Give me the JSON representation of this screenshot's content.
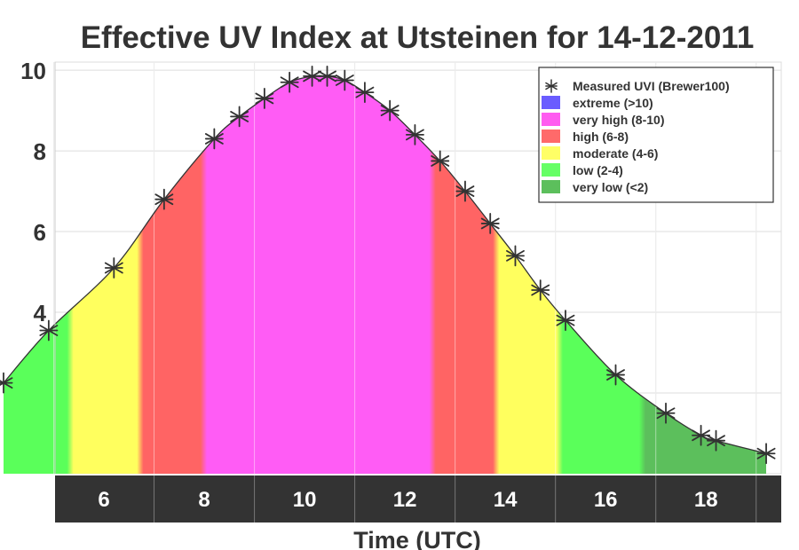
{
  "chart_data": {
    "type": "area",
    "title": "Effective UV Index at Utsteinen for 14-12-2011",
    "xlabel": "Time (UTC)",
    "ylabel": "",
    "xlim": [
      4.0,
      19.5
    ],
    "ylim": [
      0,
      10.2
    ],
    "x_ticks": [
      {
        "label": "6",
        "value": 6
      },
      {
        "label": "8",
        "value": 8
      },
      {
        "label": "10",
        "value": 10
      },
      {
        "label": "12",
        "value": 12
      },
      {
        "label": "14",
        "value": 14
      },
      {
        "label": "16",
        "value": 16
      },
      {
        "label": "18",
        "value": 18
      }
    ],
    "y_ticks": [
      {
        "label": "4",
        "value": 4
      },
      {
        "label": "6",
        "value": 6
      },
      {
        "label": "8",
        "value": 8
      },
      {
        "label": "10",
        "value": 10
      }
    ],
    "grid": true,
    "legend_position": "top-right",
    "legend": [
      {
        "label": "Measured UVI (Brewer100)",
        "marker": "asterisk",
        "color": "#333333"
      },
      {
        "label": "extreme (>10)",
        "color": "#6a5cff"
      },
      {
        "label": "very high (8-10)",
        "color": "#ff5cf0"
      },
      {
        "label": "high (6-8)",
        "color": "#ff6a6a"
      },
      {
        "label": "moderate (4-6)",
        "color": "#ffff66"
      },
      {
        "label": "low (2-4)",
        "color": "#66ff66"
      },
      {
        "label": "very low (<2)",
        "color": "#5cbf5c"
      }
    ],
    "uv_bands": [
      {
        "name": "very low",
        "min": 0,
        "max": 2,
        "color": "#5cbf5c"
      },
      {
        "name": "low",
        "min": 2,
        "max": 4,
        "color": "#5aff5a"
      },
      {
        "name": "moderate",
        "min": 4,
        "max": 6,
        "color": "#ffff5e"
      },
      {
        "name": "high",
        "min": 6,
        "max": 8,
        "color": "#ff6464"
      },
      {
        "name": "very high",
        "min": 8,
        "max": 10,
        "color": "#ff5cf5"
      },
      {
        "name": "extreme",
        "min": 10,
        "max": 12,
        "color": "#b061ff"
      }
    ],
    "series": [
      {
        "name": "Measured UVI (Brewer100)",
        "marker": "asterisk",
        "x": [
          4.0,
          4.9,
          6.2,
          7.2,
          8.2,
          8.7,
          9.2,
          9.7,
          10.15,
          10.45,
          10.8,
          11.2,
          11.7,
          12.2,
          12.7,
          13.2,
          13.7,
          14.2,
          14.7,
          15.2,
          16.2,
          17.2,
          17.9,
          18.2,
          19.2
        ],
        "y": [
          2.25,
          3.55,
          5.1,
          6.8,
          8.3,
          8.85,
          9.3,
          9.7,
          9.85,
          9.85,
          9.75,
          9.45,
          9.0,
          8.4,
          7.75,
          7.0,
          6.2,
          5.4,
          4.55,
          3.8,
          2.45,
          1.5,
          0.95,
          0.82,
          0.5
        ]
      }
    ],
    "colors": {
      "axis_band": "#333333",
      "marker": "#333333",
      "grid": "#dddddd"
    }
  }
}
